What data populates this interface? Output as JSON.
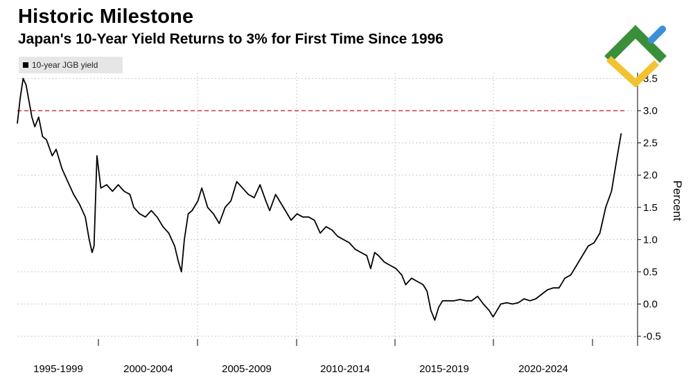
{
  "title": "Historic Milestone",
  "subtitle": "Japan's 10-Year Yield Returns to 3% for First Time Since 1996",
  "legend": {
    "label": "10-year JGB yield"
  },
  "colors": {
    "line": "#000000",
    "threshold": "#d6334a",
    "grid": "#c8c8c8",
    "legend_bg": "#e6e6e6",
    "logo_green": "#3a8f3a",
    "logo_blue": "#3b8fd8",
    "logo_yellow": "#f2c230"
  },
  "chart_data": {
    "type": "line",
    "title": "Historic Milestone",
    "subtitle": "Japan's 10-Year Yield Returns to 3% for First Time Since 1996",
    "ylabel": "Percent",
    "xlabel": "",
    "x_tick_labels": [
      "1995-1999",
      "2000-2004",
      "2005-2009",
      "2010-2014",
      "2015-2019",
      "2020-2024"
    ],
    "x_range": [
      1995.0,
      2026.3
    ],
    "y_ticks": [
      -0.5,
      0.0,
      0.5,
      1.0,
      1.5,
      2.0,
      2.5,
      3.0,
      3.5
    ],
    "y_tick_labels": [
      "-0.5",
      "0.0",
      "0.5",
      "1.0",
      "1.5",
      "2.0",
      "2.5",
      "3.0",
      "3.5"
    ],
    "ylim": [
      -0.6,
      3.8
    ],
    "grid": true,
    "legend_position": "top-left",
    "threshold_line": {
      "y": 3.0,
      "style": "dashed"
    },
    "series": [
      {
        "name": "10-year JGB yield",
        "x": [
          1995.0,
          1995.15,
          1995.3,
          1995.45,
          1995.6,
          1995.75,
          1995.9,
          1996.1,
          1996.3,
          1996.5,
          1996.8,
          1997.0,
          1997.3,
          1997.6,
          1997.9,
          1998.2,
          1998.5,
          1998.7,
          1998.85,
          1998.95,
          1999.1,
          1999.3,
          1999.6,
          1999.9,
          2000.2,
          2000.5,
          2000.8,
          2001.0,
          2001.3,
          2001.6,
          2001.9,
          2002.2,
          2002.5,
          2002.8,
          2003.1,
          2003.3,
          2003.45,
          2003.6,
          2003.8,
          2004.0,
          2004.3,
          2004.5,
          2004.8,
          2005.1,
          2005.4,
          2005.7,
          2006.0,
          2006.3,
          2006.6,
          2006.9,
          2007.2,
          2007.5,
          2007.8,
          2008.0,
          2008.3,
          2008.5,
          2008.8,
          2009.1,
          2009.4,
          2009.7,
          2010.0,
          2010.3,
          2010.6,
          2010.9,
          2011.2,
          2011.5,
          2011.8,
          2012.1,
          2012.4,
          2012.7,
          2013.0,
          2013.2,
          2013.4,
          2013.6,
          2013.9,
          2014.2,
          2014.5,
          2014.8,
          2015.0,
          2015.3,
          2015.6,
          2015.9,
          2016.1,
          2016.3,
          2016.5,
          2016.7,
          2016.9,
          2017.2,
          2017.5,
          2017.8,
          2018.1,
          2018.4,
          2018.7,
          2019.0,
          2019.3,
          2019.5,
          2019.7,
          2019.9,
          2020.2,
          2020.5,
          2020.8,
          2021.1,
          2021.4,
          2021.7,
          2022.0,
          2022.3,
          2022.6,
          2022.9,
          2023.2,
          2023.5,
          2023.8,
          2024.1,
          2024.4,
          2024.7,
          2025.0,
          2025.3,
          2025.6,
          2025.9,
          2026.1
        ],
        "y": [
          2.8,
          3.2,
          3.5,
          3.4,
          3.15,
          2.9,
          2.75,
          2.9,
          2.6,
          2.55,
          2.3,
          2.4,
          2.1,
          1.9,
          1.7,
          1.55,
          1.35,
          1.0,
          0.8,
          0.9,
          2.3,
          1.8,
          1.85,
          1.75,
          1.85,
          1.75,
          1.7,
          1.5,
          1.4,
          1.35,
          1.45,
          1.35,
          1.2,
          1.1,
          0.9,
          0.65,
          0.5,
          1.0,
          1.4,
          1.45,
          1.6,
          1.8,
          1.5,
          1.4,
          1.25,
          1.5,
          1.6,
          1.9,
          1.8,
          1.7,
          1.65,
          1.85,
          1.6,
          1.45,
          1.7,
          1.6,
          1.45,
          1.3,
          1.4,
          1.35,
          1.35,
          1.3,
          1.1,
          1.2,
          1.15,
          1.05,
          1.0,
          0.95,
          0.85,
          0.8,
          0.75,
          0.55,
          0.8,
          0.75,
          0.65,
          0.6,
          0.55,
          0.45,
          0.3,
          0.4,
          0.35,
          0.3,
          0.2,
          -0.1,
          -0.25,
          -0.05,
          0.05,
          0.05,
          0.05,
          0.07,
          0.05,
          0.05,
          0.12,
          0.0,
          -0.1,
          -0.2,
          -0.1,
          0.0,
          0.02,
          0.0,
          0.02,
          0.08,
          0.05,
          0.08,
          0.15,
          0.22,
          0.25,
          0.25,
          0.4,
          0.45,
          0.6,
          0.75,
          0.9,
          0.95,
          1.1,
          1.5,
          1.75,
          2.3,
          2.65
        ]
      }
    ]
  }
}
